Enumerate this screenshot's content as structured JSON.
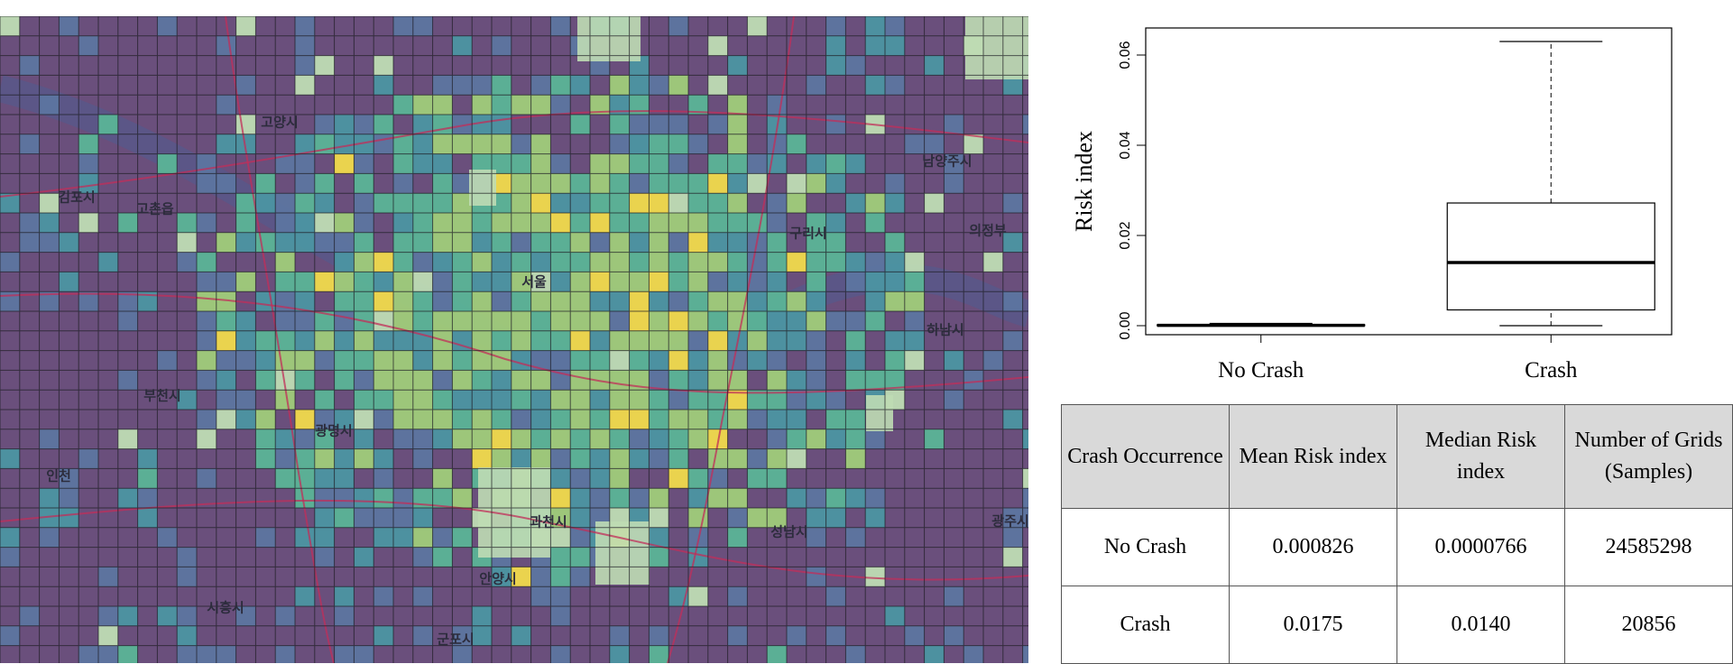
{
  "map": {
    "colors": {
      "background": "#6a4f7c",
      "low": "#7a5f8f",
      "low_mid": "#5d75a0",
      "mid": "#4c95a2",
      "mid_high": "#5bb497",
      "high": "#a0cc7a",
      "highest": "#f1da4c",
      "green_area": "#bfdcb4",
      "river": "#5a5688",
      "road": "#c22d5a",
      "grid": "#1c1c22"
    },
    "labels": [
      {
        "text": "고양시"
      },
      {
        "text": "김포시"
      },
      {
        "text": "고촌읍"
      },
      {
        "text": "서울"
      },
      {
        "text": "부천시"
      },
      {
        "text": "광명시"
      },
      {
        "text": "인천"
      },
      {
        "text": "과천시"
      },
      {
        "text": "안양시"
      },
      {
        "text": "시흥시"
      },
      {
        "text": "군포시"
      },
      {
        "text": "성남시"
      },
      {
        "text": "구리시"
      },
      {
        "text": "남양주시"
      },
      {
        "text": "하남시"
      },
      {
        "text": "의정부"
      },
      {
        "text": "광주시"
      }
    ]
  },
  "chart_data": {
    "type": "box",
    "ylabel": "Risk index",
    "ylim": [
      -0.002,
      0.066
    ],
    "yticks": [
      "0.00",
      "0.02",
      "0.04",
      "0.06"
    ],
    "categories": [
      "No Crash",
      "Crash"
    ],
    "boxes": [
      {
        "category": "No Crash",
        "whisker_low": 0.0,
        "q1": 0.0,
        "median": 7.66e-05,
        "q3": 0.0002,
        "whisker_high": 0.0005
      },
      {
        "category": "Crash",
        "whisker_low": 0.0,
        "q1": 0.0035,
        "median": 0.014,
        "q3": 0.0272,
        "whisker_high": 0.063
      }
    ]
  },
  "table": {
    "headers": [
      "Crash Occurrence",
      "Mean Risk index",
      "Median Risk index",
      "Number of Grids (Samples)"
    ],
    "rows": [
      [
        "No Crash",
        "0.000826",
        "0.0000766",
        "24585298"
      ],
      [
        "Crash",
        "0.0175",
        "0.0140",
        "20856"
      ]
    ]
  }
}
